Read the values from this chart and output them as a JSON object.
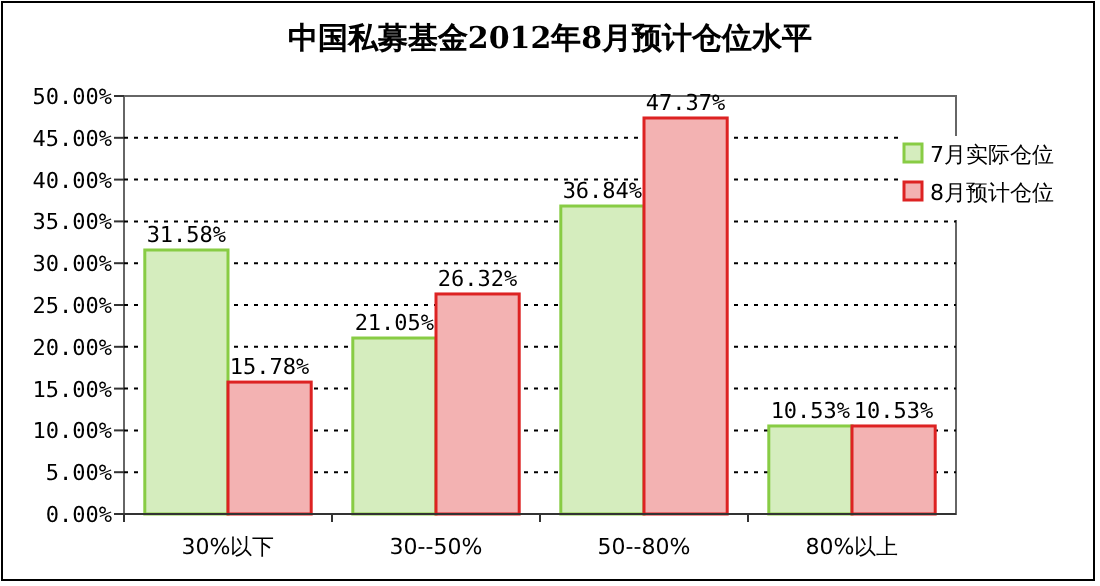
{
  "chart_data": {
    "type": "bar",
    "title": "中国私募基金2012年8月预计仓位水平",
    "categories": [
      "30%以下",
      "30--50%",
      "50--80%",
      "80%以上"
    ],
    "series": [
      {
        "name": "7月实际仓位",
        "color": "#88cc44",
        "values": [
          31.58,
          21.05,
          36.84,
          10.53
        ],
        "value_labels": [
          "31.58%",
          "21.05%",
          "36.84%",
          "10.53%"
        ]
      },
      {
        "name": "8月预计仓位",
        "color": "#dd2222",
        "values": [
          15.78,
          26.32,
          47.37,
          10.53
        ],
        "value_labels": [
          "15.78%",
          "26.32%",
          "47.37%",
          "10.53%"
        ]
      }
    ],
    "ylim": [
      0,
      50
    ],
    "yticks": [
      {
        "value": 0,
        "label": "0.00%"
      },
      {
        "value": 5,
        "label": "5.00%"
      },
      {
        "value": 10,
        "label": "10.00%"
      },
      {
        "value": 15,
        "label": "15.00%"
      },
      {
        "value": 20,
        "label": "20.00%"
      },
      {
        "value": 25,
        "label": "25.00%"
      },
      {
        "value": 30,
        "label": "30.00%"
      },
      {
        "value": 35,
        "label": "35.00%"
      },
      {
        "value": 40,
        "label": "40.00%"
      },
      {
        "value": 45,
        "label": "45.00%"
      },
      {
        "value": 50,
        "label": "50.00%"
      }
    ],
    "grid": "y",
    "legend": "right"
  }
}
